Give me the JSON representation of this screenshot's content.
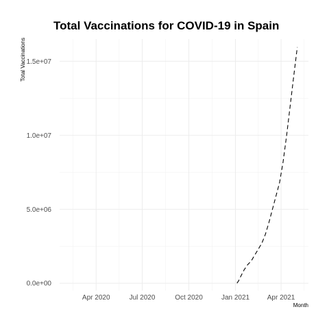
{
  "chart_data": {
    "type": "line",
    "title": "Total Vaccinations for COVID-19 in Spain",
    "xlabel": "Month",
    "ylabel": "Total Vaccinations",
    "x_ticks": [
      {
        "date": "2020-04-01",
        "label": "Apr 2020"
      },
      {
        "date": "2020-07-01",
        "label": "Jul 2020"
      },
      {
        "date": "2020-10-01",
        "label": "Oct 2020"
      },
      {
        "date": "2021-01-01",
        "label": "Jan 2021"
      },
      {
        "date": "2021-04-01",
        "label": "Apr 2021"
      }
    ],
    "y_ticks": [
      {
        "value": 0,
        "label": "0.0e+00"
      },
      {
        "value": 5000000,
        "label": "5.0e+06"
      },
      {
        "value": 10000000,
        "label": "1.0e+07"
      },
      {
        "value": 15000000,
        "label": "1.5e+07"
      }
    ],
    "xlim": [
      "2020-01-20",
      "2021-05-25"
    ],
    "ylim": [
      -500000,
      16500000
    ],
    "grid": true,
    "line_style": "dashed",
    "line_color": "#000000",
    "series": [
      {
        "x": [
          "2021-01-04",
          "2021-01-07",
          "2021-01-12",
          "2021-01-18",
          "2021-01-25",
          "2021-02-01",
          "2021-02-08",
          "2021-02-15",
          "2021-02-22",
          "2021-03-01",
          "2021-03-08",
          "2021-03-15",
          "2021-03-22",
          "2021-03-29",
          "2021-04-05",
          "2021-04-12",
          "2021-04-19",
          "2021-04-26",
          "2021-05-03"
        ],
        "y": [
          0,
          150000,
          500000,
          900000,
          1250000,
          1500000,
          1900000,
          2300000,
          2700000,
          3300000,
          4100000,
          5000000,
          5900000,
          6800000,
          8200000,
          10000000,
          12000000,
          14000000,
          15950000
        ]
      }
    ]
  }
}
